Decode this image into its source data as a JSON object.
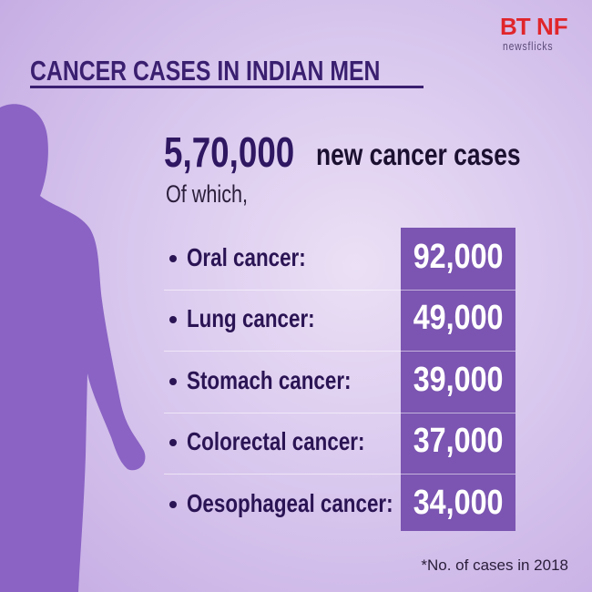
{
  "logo": {
    "left": "BT",
    "right": "NF",
    "sub": "newsflicks"
  },
  "title": "CANCER CASES IN INDIAN MEN",
  "headline": {
    "total": "5,70,000",
    "text": "new cancer cases"
  },
  "subheading": "Of which,",
  "rows": [
    {
      "label": "Oral cancer:",
      "value": "92,000"
    },
    {
      "label": "Lung cancer:",
      "value": "49,000"
    },
    {
      "label": "Stomach cancer:",
      "value": "39,000"
    },
    {
      "label": "Colorectal cancer:",
      "value": "37,000"
    },
    {
      "label": "Oesophageal cancer:",
      "value": "34,000"
    }
  ],
  "footnote": "*No. of cases in 2018"
}
